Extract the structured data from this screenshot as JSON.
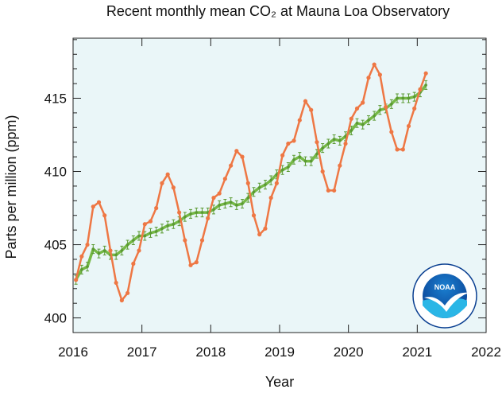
{
  "chart_data": {
    "type": "line",
    "title": "Recent monthly mean CO₂ at Mauna Loa Observatory",
    "xlabel": "Year",
    "ylabel": "Parts per million (ppm)",
    "x": [
      2016.042,
      2016.125,
      2016.208,
      2016.292,
      2016.375,
      2016.458,
      2016.542,
      2016.625,
      2016.708,
      2016.792,
      2016.875,
      2016.958,
      2017.042,
      2017.125,
      2017.208,
      2017.292,
      2017.375,
      2017.458,
      2017.542,
      2017.625,
      2017.708,
      2017.792,
      2017.875,
      2017.958,
      2018.042,
      2018.125,
      2018.208,
      2018.292,
      2018.375,
      2018.458,
      2018.542,
      2018.625,
      2018.708,
      2018.792,
      2018.875,
      2018.958,
      2019.042,
      2019.125,
      2019.208,
      2019.292,
      2019.375,
      2019.458,
      2019.542,
      2019.625,
      2019.708,
      2019.792,
      2019.875,
      2019.958,
      2020.042,
      2020.125,
      2020.208,
      2020.292,
      2020.375,
      2020.458,
      2020.542,
      2020.625,
      2020.708,
      2020.792,
      2020.875,
      2020.958,
      2021.042,
      2021.125
    ],
    "series": [
      {
        "color": "#ee7744",
        "marker": "dot",
        "values": [
          402.6,
          404.2,
          405.0,
          407.6,
          407.9,
          407.0,
          404.6,
          402.4,
          401.2,
          401.7,
          403.7,
          404.6,
          406.4,
          406.6,
          407.5,
          409.2,
          409.8,
          408.9,
          407.2,
          405.3,
          403.6,
          403.8,
          405.3,
          406.8,
          408.2,
          408.5,
          409.5,
          410.4,
          411.4,
          411.0,
          409.2,
          407.0,
          405.7,
          406.1,
          408.2,
          409.2,
          411.1,
          411.9,
          412.1,
          413.5,
          414.8,
          414.2,
          412.0,
          410.0,
          408.7,
          408.7,
          410.4,
          411.9,
          413.6,
          414.3,
          414.7,
          416.4,
          417.3,
          416.6,
          414.4,
          412.7,
          411.5,
          411.5,
          413.1,
          414.3,
          415.6,
          416.7
        ]
      },
      {
        "color": "#76b947",
        "marker": "errorbar",
        "error": 0.3,
        "values": [
          402.6,
          403.3,
          403.5,
          404.7,
          404.4,
          404.6,
          404.3,
          404.3,
          404.6,
          405.0,
          405.3,
          405.6,
          405.6,
          405.8,
          405.9,
          406.1,
          406.3,
          406.4,
          406.6,
          406.9,
          407.1,
          407.2,
          407.2,
          407.2,
          407.4,
          407.7,
          407.8,
          407.9,
          407.7,
          407.8,
          408.2,
          408.6,
          408.9,
          409.1,
          409.4,
          409.8,
          410.1,
          410.3,
          410.8,
          411.0,
          410.7,
          410.7,
          411.2,
          411.6,
          411.9,
          412.2,
          412.1,
          412.4,
          412.8,
          413.3,
          413.2,
          413.5,
          413.8,
          414.2,
          414.3,
          414.6,
          415.0,
          415.0,
          415.0,
          415.1,
          415.4,
          415.9
        ]
      }
    ],
    "xlim": [
      2016,
      2022
    ],
    "xticks": [
      2016,
      2017,
      2018,
      2019,
      2020,
      2021,
      2022
    ],
    "ylim": [
      399,
      419.1
    ],
    "yticks": [
      400,
      405,
      410,
      415
    ],
    "yminorticks": [
      399,
      401,
      402,
      403,
      404,
      406,
      407,
      408,
      409,
      411,
      412,
      413,
      414,
      416,
      417,
      418,
      419
    ],
    "background": "#eaf6f8",
    "logo_text": "NOAA"
  }
}
